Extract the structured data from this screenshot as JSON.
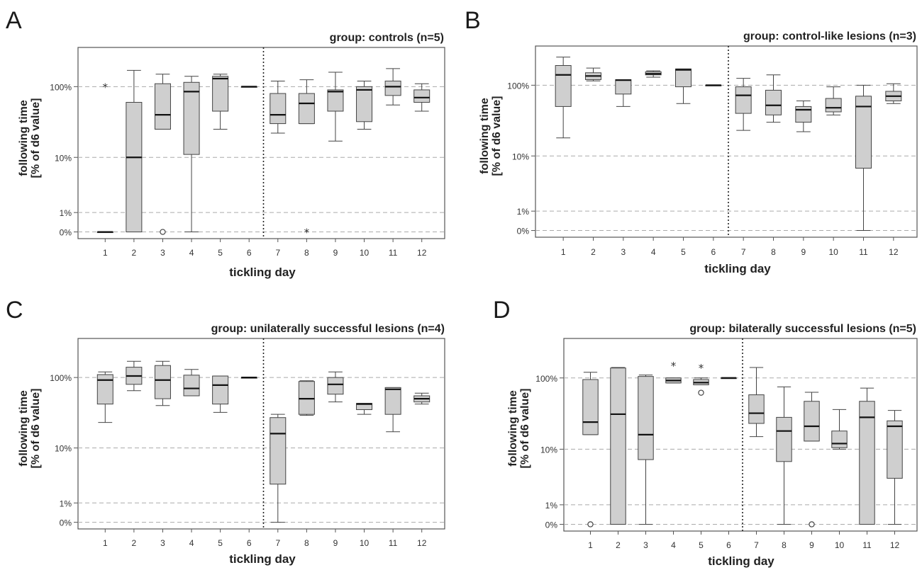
{
  "chart_data": [
    {
      "type": "box",
      "panel": "A",
      "title": "group: controls (n=5)",
      "ylabel_line1": "following time",
      "ylabel_line2": "[% of d6 value]",
      "xlabel": "tickling day",
      "y_ticks": [
        "0%",
        "1%",
        "10%",
        "100%"
      ],
      "y_scale": "log-like with 0% at the bottom",
      "grid": "dashed horizontal at 0%, 1%, 10%, 100%",
      "divider_after_day": 6,
      "categories": [
        "1",
        "2",
        "3",
        "4",
        "5",
        "6",
        "7",
        "8",
        "9",
        "10",
        "11",
        "12"
      ],
      "boxes": [
        {
          "day": "1",
          "min": 0,
          "q1": 0,
          "median": 0,
          "q3": 0,
          "max": 0
        },
        {
          "day": "2",
          "min": 0,
          "q1": 0,
          "median": 10,
          "q3": 60,
          "max": 170
        },
        {
          "day": "3",
          "min": 25,
          "q1": 25,
          "median": 40,
          "q3": 110,
          "max": 150
        },
        {
          "day": "4",
          "min": 0,
          "q1": 11,
          "median": 85,
          "q3": 115,
          "max": 140
        },
        {
          "day": "5",
          "min": 25,
          "q1": 45,
          "median": 130,
          "q3": 140,
          "max": 150
        },
        {
          "day": "6",
          "min": 100,
          "q1": 100,
          "median": 100,
          "q3": 100,
          "max": 100
        },
        {
          "day": "7",
          "min": 22,
          "q1": 30,
          "median": 40,
          "q3": 80,
          "max": 120
        },
        {
          "day": "8",
          "min": 30,
          "q1": 30,
          "median": 58,
          "q3": 80,
          "max": 125
        },
        {
          "day": "9",
          "min": 17,
          "q1": 45,
          "median": 85,
          "q3": 90,
          "max": 160
        },
        {
          "day": "10",
          "min": 25,
          "q1": 32,
          "median": 90,
          "q3": 100,
          "max": 120
        },
        {
          "day": "11",
          "min": 55,
          "q1": 75,
          "median": 100,
          "q3": 120,
          "max": 180
        },
        {
          "day": "12",
          "min": 45,
          "q1": 60,
          "median": 70,
          "q3": 90,
          "max": 110
        }
      ],
      "outliers": [
        {
          "day": "1",
          "value": 100,
          "marker": "*"
        },
        {
          "day": "3",
          "value": 0,
          "marker": "o"
        },
        {
          "day": "8",
          "value": 0,
          "marker": "*"
        }
      ]
    },
    {
      "type": "box",
      "panel": "B",
      "title": "group: control-like lesions (n=3)",
      "ylabel_line1": "following time",
      "ylabel_line2": "[% of d6 value]",
      "xlabel": "tickling day",
      "y_ticks": [
        "0%",
        "1%",
        "10%",
        "100%"
      ],
      "grid": "dashed horizontal at 0%, 1%, 10%, 100%",
      "divider_after_day": 6,
      "categories": [
        "1",
        "2",
        "3",
        "4",
        "5",
        "6",
        "7",
        "8",
        "9",
        "10",
        "11",
        "12"
      ],
      "boxes": [
        {
          "day": "1",
          "min": 18,
          "q1": 50,
          "median": 140,
          "q3": 190,
          "max": 250
        },
        {
          "day": "2",
          "min": 115,
          "q1": 120,
          "median": 135,
          "q3": 150,
          "max": 175
        },
        {
          "day": "3",
          "min": 50,
          "q1": 75,
          "median": 118,
          "q3": 120,
          "max": 120
        },
        {
          "day": "4",
          "min": 130,
          "q1": 140,
          "median": 145,
          "q3": 155,
          "max": 160
        },
        {
          "day": "5",
          "min": 55,
          "q1": 95,
          "median": 165,
          "q3": 170,
          "max": 170
        },
        {
          "day": "6",
          "min": 100,
          "q1": 100,
          "median": 100,
          "q3": 100,
          "max": 100
        },
        {
          "day": "7",
          "min": 23,
          "q1": 40,
          "median": 72,
          "q3": 95,
          "max": 125
        },
        {
          "day": "8",
          "min": 30,
          "q1": 38,
          "median": 52,
          "q3": 85,
          "max": 140
        },
        {
          "day": "9",
          "min": 22,
          "q1": 30,
          "median": 45,
          "q3": 50,
          "max": 60
        },
        {
          "day": "10",
          "min": 38,
          "q1": 42,
          "median": 48,
          "q3": 65,
          "max": 95
        },
        {
          "day": "11",
          "min": 0,
          "q1": 6,
          "median": 50,
          "q3": 70,
          "max": 100
        },
        {
          "day": "12",
          "min": 55,
          "q1": 60,
          "median": 70,
          "q3": 82,
          "max": 105
        }
      ],
      "outliers": []
    },
    {
      "type": "box",
      "panel": "C",
      "title": "group: unilaterally successful lesions (n=4)",
      "ylabel_line1": "following time",
      "ylabel_line2": "[% of d6 value]",
      "xlabel": "tickling day",
      "y_ticks": [
        "0%",
        "1%",
        "10%",
        "100%"
      ],
      "grid": "dashed horizontal at 0%, 1%, 10%, 100%",
      "divider_after_day": 6,
      "categories": [
        "1",
        "2",
        "3",
        "4",
        "5",
        "6",
        "7",
        "8",
        "9",
        "10",
        "11",
        "12"
      ],
      "boxes": [
        {
          "day": "1",
          "min": 23,
          "q1": 42,
          "median": 92,
          "q3": 110,
          "max": 120
        },
        {
          "day": "2",
          "min": 65,
          "q1": 80,
          "median": 105,
          "q3": 140,
          "max": 170
        },
        {
          "day": "3",
          "min": 40,
          "q1": 50,
          "median": 92,
          "q3": 148,
          "max": 170
        },
        {
          "day": "4",
          "min": 55,
          "q1": 55,
          "median": 70,
          "q3": 108,
          "max": 130
        },
        {
          "day": "5",
          "min": 32,
          "q1": 42,
          "median": 78,
          "q3": 105,
          "max": 105
        },
        {
          "day": "6",
          "min": 100,
          "q1": 100,
          "median": 100,
          "q3": 100,
          "max": 100
        },
        {
          "day": "7",
          "min": 0,
          "q1": 2.2,
          "median": 16,
          "q3": 27,
          "max": 30
        },
        {
          "day": "8",
          "min": 29,
          "q1": 30,
          "median": 50,
          "q3": 88,
          "max": 90
        },
        {
          "day": "9",
          "min": 45,
          "q1": 58,
          "median": 80,
          "q3": 100,
          "max": 120
        },
        {
          "day": "10",
          "min": 30,
          "q1": 35,
          "median": 42,
          "q3": 43,
          "max": 43
        },
        {
          "day": "11",
          "min": 17,
          "q1": 30,
          "median": 68,
          "q3": 72,
          "max": 72
        },
        {
          "day": "12",
          "min": 42,
          "q1": 45,
          "median": 50,
          "q3": 55,
          "max": 60
        }
      ],
      "outliers": []
    },
    {
      "type": "box",
      "panel": "D",
      "title": "group: bilaterally successful lesions (n=5)",
      "ylabel_line1": "following time",
      "ylabel_line2": "[% of d6 value]",
      "xlabel": "tickling day",
      "y_ticks": [
        "0%",
        "1%",
        "10%",
        "100%"
      ],
      "grid": "dashed horizontal at 0%, 1%, 10%, 100%",
      "divider_after_day": 6,
      "categories": [
        "1",
        "2",
        "3",
        "4",
        "5",
        "6",
        "7",
        "8",
        "9",
        "10",
        "11",
        "12"
      ],
      "boxes": [
        {
          "day": "1",
          "min": 16,
          "q1": 16,
          "median": 24,
          "q3": 95,
          "max": 120
        },
        {
          "day": "2",
          "min": 0,
          "q1": 0,
          "median": 31,
          "q3": 138,
          "max": 140
        },
        {
          "day": "3",
          "min": 0,
          "q1": 6.5,
          "median": 16,
          "q3": 105,
          "max": 110
        },
        {
          "day": "4",
          "min": 85,
          "q1": 85,
          "median": 92,
          "q3": 100,
          "max": 100
        },
        {
          "day": "5",
          "min": 80,
          "q1": 80,
          "median": 86,
          "q3": 95,
          "max": 100
        },
        {
          "day": "6",
          "min": 100,
          "q1": 100,
          "median": 100,
          "q3": 100,
          "max": 100
        },
        {
          "day": "7",
          "min": 15,
          "q1": 23,
          "median": 32,
          "q3": 58,
          "max": 140
        },
        {
          "day": "8",
          "min": 0,
          "q1": 6,
          "median": 18,
          "q3": 28,
          "max": 75
        },
        {
          "day": "9",
          "min": 13,
          "q1": 13,
          "median": 21,
          "q3": 47,
          "max": 63
        },
        {
          "day": "10",
          "min": 10,
          "q1": 10.5,
          "median": 12,
          "q3": 18,
          "max": 36
        },
        {
          "day": "11",
          "min": 0,
          "q1": 0,
          "median": 28,
          "q3": 47,
          "max": 72
        },
        {
          "day": "12",
          "min": 0,
          "q1": 3,
          "median": 21,
          "q3": 25,
          "max": 35
        }
      ],
      "outliers": [
        {
          "day": "1",
          "value": 0,
          "marker": "o"
        },
        {
          "day": "4",
          "value": 150,
          "marker": "*"
        },
        {
          "day": "5",
          "value": 140,
          "marker": "*"
        },
        {
          "day": "5",
          "value": 62,
          "marker": "o"
        },
        {
          "day": "9",
          "value": 0,
          "marker": "o"
        }
      ]
    }
  ]
}
